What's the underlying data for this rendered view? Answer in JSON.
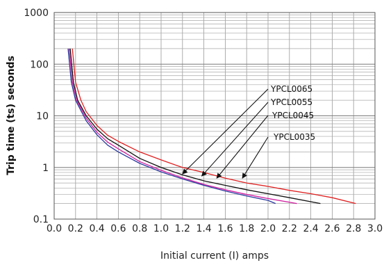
{
  "chart_data": {
    "type": "line",
    "title": "",
    "xlabel": "Initial current (I) amps",
    "ylabel": "Trip time (ts) seconds",
    "xlim": [
      0.0,
      3.0
    ],
    "ylim": [
      0.1,
      1000
    ],
    "yscale": "log",
    "grid": true,
    "x_ticks": [
      "0.0",
      "0.2",
      "0.4",
      "0.6",
      "0.8",
      "1.0",
      "1.2",
      "1.4",
      "1.6",
      "1.8",
      "2.0",
      "2.2",
      "2.4",
      "2.6",
      "2.8",
      "3.0"
    ],
    "y_ticks": [
      "0.1",
      "1",
      "10",
      "100",
      "1000"
    ],
    "series": [
      {
        "name": "YPCL0065",
        "color": "#e02020",
        "points": [
          [
            0.17,
            200
          ],
          [
            0.2,
            45
          ],
          [
            0.25,
            20
          ],
          [
            0.3,
            12
          ],
          [
            0.4,
            6.5
          ],
          [
            0.5,
            4.2
          ],
          [
            0.6,
            3.2
          ],
          [
            0.8,
            2.0
          ],
          [
            1.0,
            1.4
          ],
          [
            1.2,
            1.0
          ],
          [
            1.4,
            0.8
          ],
          [
            1.6,
            0.62
          ],
          [
            1.8,
            0.5
          ],
          [
            2.0,
            0.43
          ],
          [
            2.2,
            0.36
          ],
          [
            2.4,
            0.31
          ],
          [
            2.6,
            0.26
          ],
          [
            2.82,
            0.2
          ]
        ]
      },
      {
        "name": "YPCL0055",
        "color": "#111111",
        "points": [
          [
            0.15,
            200
          ],
          [
            0.18,
            45
          ],
          [
            0.22,
            20
          ],
          [
            0.3,
            10
          ],
          [
            0.4,
            5.5
          ],
          [
            0.5,
            3.6
          ],
          [
            0.6,
            2.7
          ],
          [
            0.8,
            1.5
          ],
          [
            1.0,
            1.0
          ],
          [
            1.2,
            0.72
          ],
          [
            1.4,
            0.55
          ],
          [
            1.6,
            0.45
          ],
          [
            1.8,
            0.37
          ],
          [
            2.0,
            0.31
          ],
          [
            2.2,
            0.26
          ],
          [
            2.49,
            0.2
          ]
        ]
      },
      {
        "name": "YPCL0045",
        "color": "#d020a0",
        "points": [
          [
            0.14,
            200
          ],
          [
            0.17,
            45
          ],
          [
            0.21,
            20
          ],
          [
            0.3,
            9
          ],
          [
            0.4,
            4.8
          ],
          [
            0.5,
            3.1
          ],
          [
            0.6,
            2.3
          ],
          [
            0.8,
            1.3
          ],
          [
            1.0,
            0.88
          ],
          [
            1.2,
            0.63
          ],
          [
            1.4,
            0.47
          ],
          [
            1.6,
            0.37
          ],
          [
            1.8,
            0.3
          ],
          [
            2.0,
            0.25
          ],
          [
            2.27,
            0.2
          ]
        ]
      },
      {
        "name": "YPCL0035",
        "color": "#2a3aa0",
        "points": [
          [
            0.13,
            200
          ],
          [
            0.16,
            45
          ],
          [
            0.2,
            20
          ],
          [
            0.3,
            8
          ],
          [
            0.4,
            4.3
          ],
          [
            0.5,
            2.7
          ],
          [
            0.6,
            2.0
          ],
          [
            0.8,
            1.2
          ],
          [
            1.0,
            0.82
          ],
          [
            1.2,
            0.6
          ],
          [
            1.4,
            0.45
          ],
          [
            1.6,
            0.35
          ],
          [
            1.8,
            0.28
          ],
          [
            2.0,
            0.23
          ],
          [
            2.07,
            0.2
          ]
        ]
      }
    ],
    "annotations": [
      {
        "text": "YPCL0065",
        "arrow_to": [
          1.2,
          0.75
        ]
      },
      {
        "text": "YPCL0055",
        "arrow_to": [
          1.38,
          0.68
        ]
      },
      {
        "text": "YPCL0045",
        "arrow_to": [
          1.52,
          0.62
        ]
      },
      {
        "text": "YPCL0035",
        "arrow_to": [
          1.76,
          0.62
        ]
      }
    ]
  }
}
